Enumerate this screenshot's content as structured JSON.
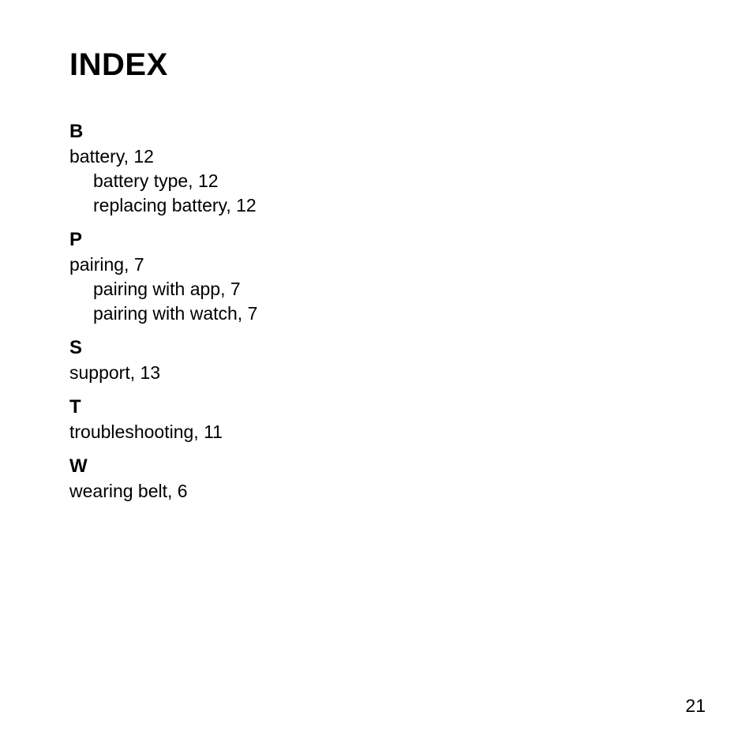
{
  "page": {
    "title": "INDEX",
    "number": "21",
    "background_color": "#ffffff",
    "text_color": "#000000",
    "title_fontsize": 40,
    "letter_fontsize": 24,
    "entry_fontsize": 23,
    "font_family": "Segoe UI, Helvetica Neue, Arial, sans-serif"
  },
  "sections": [
    {
      "letter": "B",
      "entries": [
        {
          "text": "battery, 12",
          "sub": false
        },
        {
          "text": "battery type, 12",
          "sub": true
        },
        {
          "text": "replacing battery, 12",
          "sub": true
        }
      ]
    },
    {
      "letter": "P",
      "entries": [
        {
          "text": "pairing, 7",
          "sub": false
        },
        {
          "text": "pairing with app, 7",
          "sub": true
        },
        {
          "text": "pairing with watch, 7",
          "sub": true
        }
      ]
    },
    {
      "letter": "S",
      "entries": [
        {
          "text": "support, 13",
          "sub": false
        }
      ]
    },
    {
      "letter": "T",
      "entries": [
        {
          "text": "troubleshooting, 11",
          "sub": false
        }
      ]
    },
    {
      "letter": "W",
      "entries": [
        {
          "text": "wearing belt, 6",
          "sub": false
        }
      ]
    }
  ]
}
